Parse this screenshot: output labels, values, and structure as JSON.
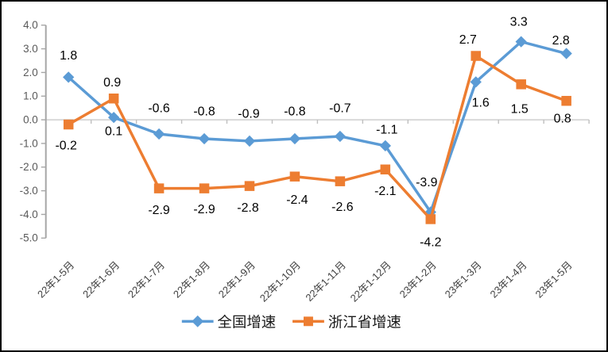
{
  "chart_data": {
    "type": "line",
    "title": "",
    "xlabel": "",
    "ylabel": "",
    "categories": [
      "22年1-5月",
      "22年1-6月",
      "22年1-7月",
      "22年1-8月",
      "22年1-9月",
      "22年1-10月",
      "22年1-11月",
      "22年1-12月",
      "23年1-2月",
      "23年1-3月",
      "23年1-4月",
      "23年1-5月"
    ],
    "series": [
      {
        "key": "national-growth",
        "name": "全国增速",
        "color": "#5B9BD5",
        "marker": "diamond",
        "values": [
          1.8,
          0.1,
          -0.6,
          -0.8,
          -0.9,
          -0.8,
          -0.7,
          -1.1,
          -3.9,
          1.6,
          3.3,
          2.8
        ],
        "label_offsets": [
          [
            0,
            -28
          ],
          [
            0,
            17
          ],
          [
            0,
            -33
          ],
          [
            0,
            -35
          ],
          [
            -1,
            -35
          ],
          [
            0,
            -35
          ],
          [
            0,
            -36
          ],
          [
            2,
            -21
          ],
          [
            -5,
            -38
          ],
          [
            6,
            26
          ],
          [
            -3,
            -26
          ],
          [
            -7,
            -17
          ]
        ]
      },
      {
        "key": "zhejiang-growth",
        "name": "浙江省增速",
        "color": "#ED7D31",
        "marker": "square",
        "values": [
          -0.2,
          0.9,
          -2.9,
          -2.9,
          -2.8,
          -2.4,
          -2.6,
          -2.1,
          -4.2,
          2.7,
          1.5,
          0.8
        ],
        "label_offsets": [
          [
            -3,
            26
          ],
          [
            -2,
            -21
          ],
          [
            0,
            27
          ],
          [
            0,
            26
          ],
          [
            -2,
            27
          ],
          [
            3,
            29
          ],
          [
            3,
            32
          ],
          [
            0,
            27
          ],
          [
            0,
            29
          ],
          [
            -10,
            -21
          ],
          [
            -2,
            31
          ],
          [
            -5,
            22
          ]
        ]
      }
    ],
    "ylim": [
      -5.0,
      4.0
    ],
    "yticks": [
      4,
      3,
      2,
      1,
      0,
      -1,
      -2,
      -3,
      -4,
      -5
    ],
    "ytick_labels": [
      "4.0",
      "3.0",
      "2.0",
      "1.0",
      "0.0",
      "-1.0",
      "-2.0",
      "-3.0",
      "-4.0",
      "-5.0"
    ],
    "grid": "zero-line-only",
    "legend_position": "bottom",
    "data_labels": true,
    "colors": {
      "axis_line": "#a6a6a6",
      "zero_line": "#d9d9d9",
      "category_tick": "#bfbfbf",
      "ytick_label": "#595959",
      "xtick_label": "#404040",
      "data_label": "#000000",
      "border": "#000000"
    }
  }
}
